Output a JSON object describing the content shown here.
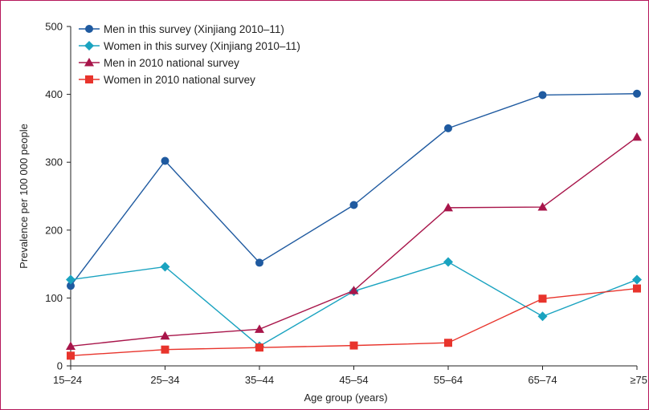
{
  "chart_data": {
    "type": "line",
    "title": "",
    "xlabel": "Age group (years)",
    "ylabel": "Prevalence per 100 000 people",
    "categories": [
      "15–24",
      "25–34",
      "35–44",
      "45–54",
      "55–64",
      "65–74",
      "≥75"
    ],
    "ylim": [
      0,
      500
    ],
    "yticks": [
      0,
      100,
      200,
      300,
      400,
      500
    ],
    "grid": false,
    "legend_position": "top-left",
    "series": [
      {
        "name": "Men in this survey (Xinjiang 2010–11)",
        "color": "#1f5aa0",
        "marker": "circle",
        "values": [
          118,
          302,
          152,
          237,
          350,
          399,
          401
        ]
      },
      {
        "name": "Women in this survey (Xinjiang 2010–11)",
        "color": "#1aa3c0",
        "marker": "diamond",
        "values": [
          127,
          146,
          29,
          110,
          153,
          73,
          127
        ]
      },
      {
        "name": "Men in 2010 national survey",
        "color": "#a8154a",
        "marker": "triangle",
        "values": [
          29,
          44,
          54,
          111,
          233,
          234,
          337
        ]
      },
      {
        "name": "Women in 2010 national survey",
        "color": "#e8342c",
        "marker": "square",
        "values": [
          15,
          24,
          27,
          30,
          34,
          99,
          114
        ]
      }
    ]
  }
}
